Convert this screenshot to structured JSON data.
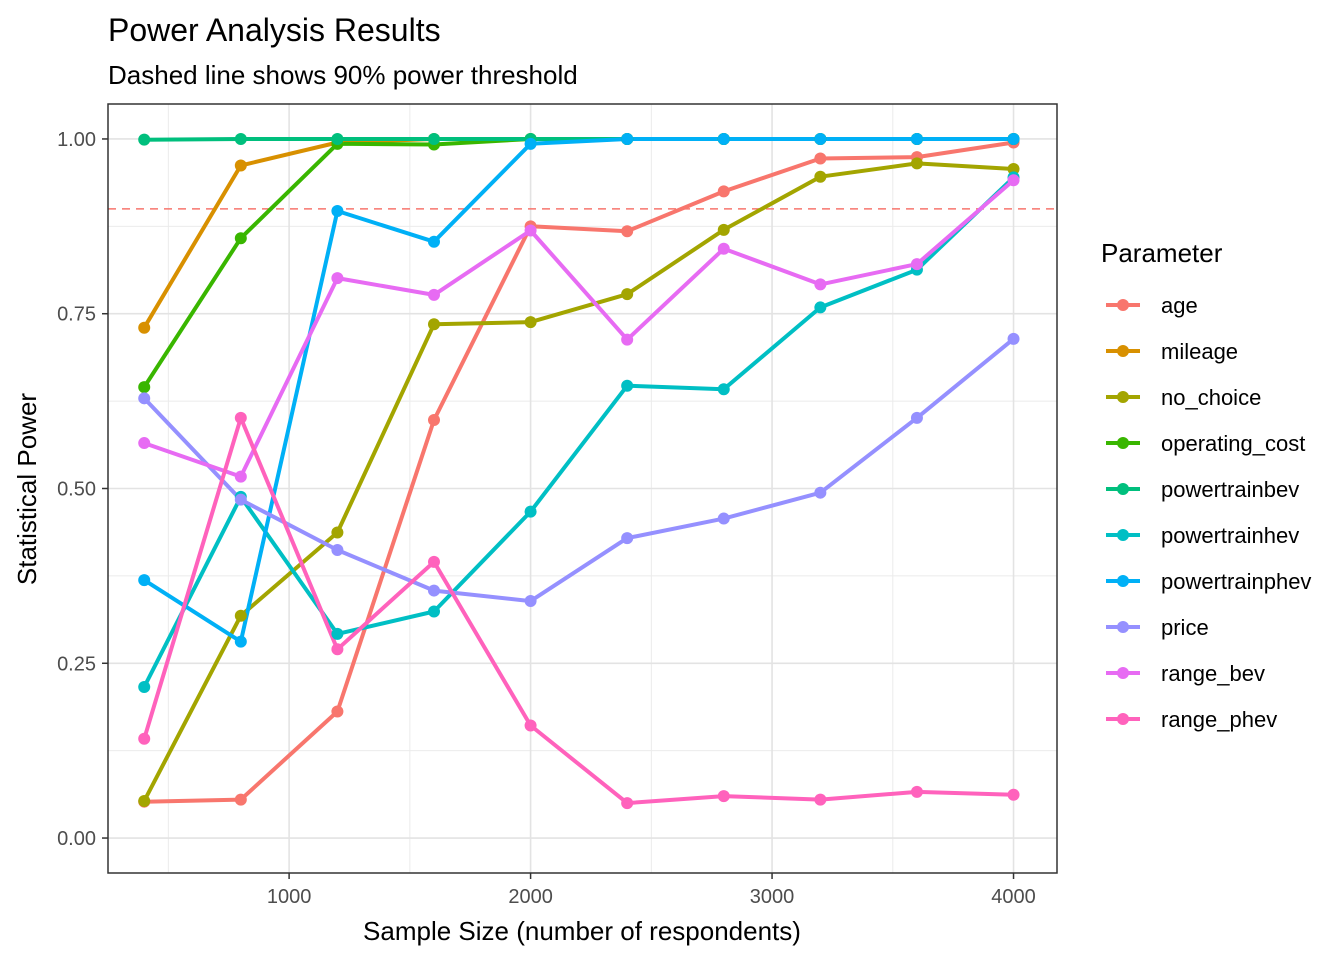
{
  "chart_data": {
    "type": "line",
    "title": "Power Analysis Results",
    "subtitle": "Dashed line shows 90% power threshold",
    "xlabel": "Sample Size (number of respondents)",
    "ylabel": "Statistical Power",
    "xlim": [
      250,
      4180
    ],
    "ylim": [
      -0.05,
      1.05
    ],
    "xticks": [
      1000,
      2000,
      3000,
      4000
    ],
    "xtick_labels": [
      "1000",
      "2000",
      "3000",
      "4000"
    ],
    "yticks": [
      0,
      0.25,
      0.5,
      0.75,
      1.0
    ],
    "ytick_labels": [
      "0.00",
      "0.25",
      "0.50",
      "0.75",
      "1.00"
    ],
    "grid": true,
    "threshold": {
      "value": 0.9,
      "color": "#F8766D",
      "style": "dashed"
    },
    "legend": {
      "title": "Parameter",
      "placement": "right"
    },
    "x": [
      400,
      800,
      1200,
      1600,
      2000,
      2400,
      2800,
      3200,
      3600,
      4000
    ],
    "series": [
      {
        "name": "age",
        "color": "#F8766D",
        "values": [
          0.052,
          0.055,
          0.181,
          0.598,
          0.875,
          0.868,
          0.925,
          0.972,
          0.974,
          0.995
        ]
      },
      {
        "name": "mileage",
        "color": "#D89000",
        "values": [
          0.73,
          0.962,
          0.995,
          1.0,
          1.0,
          1.0,
          1.0,
          1.0,
          1.0,
          1.0
        ]
      },
      {
        "name": "no_choice",
        "color": "#A3A500",
        "values": [
          0.053,
          0.318,
          0.437,
          0.735,
          0.738,
          0.778,
          0.87,
          0.946,
          0.965,
          0.957
        ]
      },
      {
        "name": "operating_cost",
        "color": "#39B600",
        "values": [
          0.645,
          0.858,
          0.993,
          0.992,
          1.0,
          1.0,
          1.0,
          1.0,
          1.0,
          1.0
        ]
      },
      {
        "name": "powertrainbev",
        "color": "#00BF7D",
        "values": [
          0.999,
          1.0,
          1.0,
          1.0,
          1.0,
          1.0,
          1.0,
          1.0,
          1.0,
          1.0
        ]
      },
      {
        "name": "powertrainhev",
        "color": "#00BFC4",
        "values": [
          0.216,
          0.488,
          0.292,
          0.324,
          0.467,
          0.647,
          0.642,
          0.759,
          0.813,
          0.945
        ]
      },
      {
        "name": "powertrainphev",
        "color": "#00B0F6",
        "values": [
          0.369,
          0.281,
          0.897,
          0.853,
          0.993,
          1.0,
          1.0,
          1.0,
          1.0,
          1.0
        ]
      },
      {
        "name": "price",
        "color": "#9590FF",
        "values": [
          0.629,
          0.484,
          0.412,
          0.354,
          0.339,
          0.429,
          0.457,
          0.494,
          0.601,
          0.714
        ]
      },
      {
        "name": "range_bev",
        "color": "#E76BF3",
        "values": [
          0.565,
          0.517,
          0.801,
          0.777,
          0.869,
          0.713,
          0.843,
          0.792,
          0.821,
          0.941
        ]
      },
      {
        "name": "range_phev",
        "color": "#FF62BC",
        "values": [
          0.142,
          0.601,
          0.27,
          0.395,
          0.161,
          0.05,
          0.06,
          0.055,
          0.066,
          0.062
        ]
      }
    ]
  }
}
